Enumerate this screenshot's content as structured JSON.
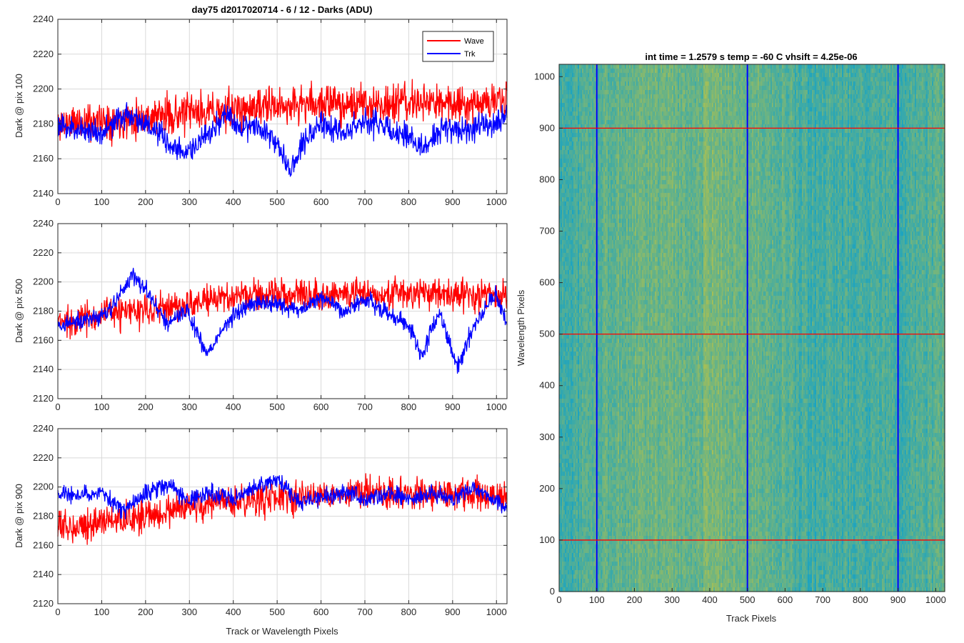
{
  "colors": {
    "wave": "#ff0000",
    "trk": "#0000ff",
    "grid": "#d9d9d9",
    "axis": "#262626",
    "image_low": "#1aa3c2",
    "image_high": "#b5c24a"
  },
  "chart_data": [
    {
      "type": "line",
      "title": "day75 d2017020714 - 6 / 12 - Darks (ADU)",
      "xlabel": "",
      "ylabel": "Dark @ pix 100",
      "xlim": [
        0,
        1024
      ],
      "ylim": [
        2140,
        2240
      ],
      "xticks": [
        0,
        100,
        200,
        300,
        400,
        500,
        600,
        700,
        800,
        900,
        1000
      ],
      "yticks": [
        2140,
        2160,
        2180,
        2200,
        2220,
        2240
      ],
      "grid": true,
      "legend": "top-right",
      "series": [
        {
          "name": "Wave",
          "color": "#ff0000",
          "mean": 2186,
          "noise": 9,
          "seed": 11,
          "trend": [
            [
              0,
              2180
            ],
            [
              100,
              2182
            ],
            [
              200,
              2184
            ],
            [
              300,
              2186
            ],
            [
              400,
              2188
            ],
            [
              500,
              2190
            ],
            [
              600,
              2192
            ],
            [
              700,
              2191
            ],
            [
              800,
              2192
            ],
            [
              900,
              2192
            ],
            [
              1024,
              2193
            ]
          ]
        },
        {
          "name": "Trk",
          "color": "#0000ff",
          "mean": 2178,
          "noise": 6,
          "seed": 23,
          "trend": [
            [
              0,
              2178
            ],
            [
              50,
              2177
            ],
            [
              100,
              2175
            ],
            [
              160,
              2186
            ],
            [
              200,
              2180
            ],
            [
              240,
              2172
            ],
            [
              270,
              2164
            ],
            [
              300,
              2165
            ],
            [
              340,
              2172
            ],
            [
              380,
              2185
            ],
            [
              420,
              2178
            ],
            [
              460,
              2180
            ],
            [
              500,
              2168
            ],
            [
              530,
              2155
            ],
            [
              560,
              2170
            ],
            [
              600,
              2180
            ],
            [
              650,
              2175
            ],
            [
              700,
              2182
            ],
            [
              750,
              2178
            ],
            [
              800,
              2172
            ],
            [
              830,
              2166
            ],
            [
              880,
              2178
            ],
            [
              920,
              2175
            ],
            [
              960,
              2180
            ],
            [
              1000,
              2178
            ],
            [
              1024,
              2190
            ]
          ]
        }
      ]
    },
    {
      "type": "line",
      "xlabel": "",
      "ylabel": "Dark @ pix 500",
      "xlim": [
        0,
        1024
      ],
      "ylim": [
        2120,
        2240
      ],
      "xticks": [
        0,
        100,
        200,
        300,
        400,
        500,
        600,
        700,
        800,
        900,
        1000
      ],
      "yticks": [
        2120,
        2140,
        2160,
        2180,
        2200,
        2220,
        2240
      ],
      "grid": true,
      "series": [
        {
          "name": "Wave",
          "color": "#ff0000",
          "mean": 2186,
          "noise": 9,
          "seed": 37,
          "trend": [
            [
              0,
              2172
            ],
            [
              100,
              2178
            ],
            [
              200,
              2180
            ],
            [
              300,
              2185
            ],
            [
              400,
              2190
            ],
            [
              500,
              2192
            ],
            [
              600,
              2192
            ],
            [
              700,
              2192
            ],
            [
              800,
              2192
            ],
            [
              900,
              2192
            ],
            [
              1024,
              2190
            ]
          ]
        },
        {
          "name": "Trk",
          "color": "#0000ff",
          "mean": 2180,
          "noise": 5,
          "seed": 41,
          "trend": [
            [
              0,
              2170
            ],
            [
              80,
              2175
            ],
            [
              120,
              2180
            ],
            [
              170,
              2205
            ],
            [
              200,
              2195
            ],
            [
              250,
              2170
            ],
            [
              290,
              2182
            ],
            [
              340,
              2150
            ],
            [
              380,
              2170
            ],
            [
              430,
              2185
            ],
            [
              500,
              2185
            ],
            [
              550,
              2180
            ],
            [
              600,
              2190
            ],
            [
              650,
              2180
            ],
            [
              700,
              2188
            ],
            [
              760,
              2178
            ],
            [
              800,
              2170
            ],
            [
              830,
              2150
            ],
            [
              870,
              2180
            ],
            [
              910,
              2142
            ],
            [
              950,
              2170
            ],
            [
              1000,
              2192
            ],
            [
              1024,
              2172
            ]
          ]
        }
      ]
    },
    {
      "type": "line",
      "xlabel": "Track or Wavelength Pixels",
      "ylabel": "Dark @ pix 900",
      "xlim": [
        0,
        1024
      ],
      "ylim": [
        2120,
        2240
      ],
      "xticks": [
        0,
        100,
        200,
        300,
        400,
        500,
        600,
        700,
        800,
        900,
        1000
      ],
      "yticks": [
        2120,
        2140,
        2160,
        2180,
        2200,
        2220,
        2240
      ],
      "grid": true,
      "series": [
        {
          "name": "Wave",
          "color": "#ff0000",
          "mean": 2185,
          "noise": 9,
          "seed": 53,
          "trend": [
            [
              0,
              2172
            ],
            [
              100,
              2176
            ],
            [
              200,
              2180
            ],
            [
              300,
              2186
            ],
            [
              400,
              2190
            ],
            [
              500,
              2193
            ],
            [
              600,
              2195
            ],
            [
              700,
              2196
            ],
            [
              800,
              2195
            ],
            [
              900,
              2196
            ],
            [
              1024,
              2192
            ]
          ]
        },
        {
          "name": "Trk",
          "color": "#0000ff",
          "mean": 2194,
          "noise": 5,
          "seed": 67,
          "trend": [
            [
              0,
              2195
            ],
            [
              100,
              2195
            ],
            [
              150,
              2184
            ],
            [
              200,
              2196
            ],
            [
              250,
              2203
            ],
            [
              300,
              2190
            ],
            [
              350,
              2196
            ],
            [
              400,
              2192
            ],
            [
              450,
              2200
            ],
            [
              500,
              2205
            ],
            [
              550,
              2190
            ],
            [
              600,
              2192
            ],
            [
              650,
              2196
            ],
            [
              700,
              2192
            ],
            [
              750,
              2195
            ],
            [
              800,
              2192
            ],
            [
              850,
              2195
            ],
            [
              900,
              2192
            ],
            [
              950,
              2200
            ],
            [
              1000,
              2190
            ],
            [
              1024,
              2186
            ]
          ]
        }
      ]
    },
    {
      "type": "heatmap",
      "title": "int time = 1.2579 s    temp = -60 C    vhsift = 4.25e-06",
      "xlabel": "Track Pixels",
      "ylabel": "Wavelength Pixels",
      "xlim": [
        0,
        1024
      ],
      "ylim": [
        0,
        1024
      ],
      "xticks": [
        0,
        100,
        200,
        300,
        400,
        500,
        600,
        700,
        800,
        900,
        1000
      ],
      "yticks": [
        0,
        100,
        200,
        300,
        400,
        500,
        600,
        700,
        800,
        900,
        1000
      ],
      "vertical_markers": [
        100,
        500,
        900
      ],
      "horizontal_markers": [
        100,
        500,
        900
      ],
      "vertical_marker_color": "#0000ff",
      "horizontal_marker_color": "#ff0000"
    }
  ]
}
